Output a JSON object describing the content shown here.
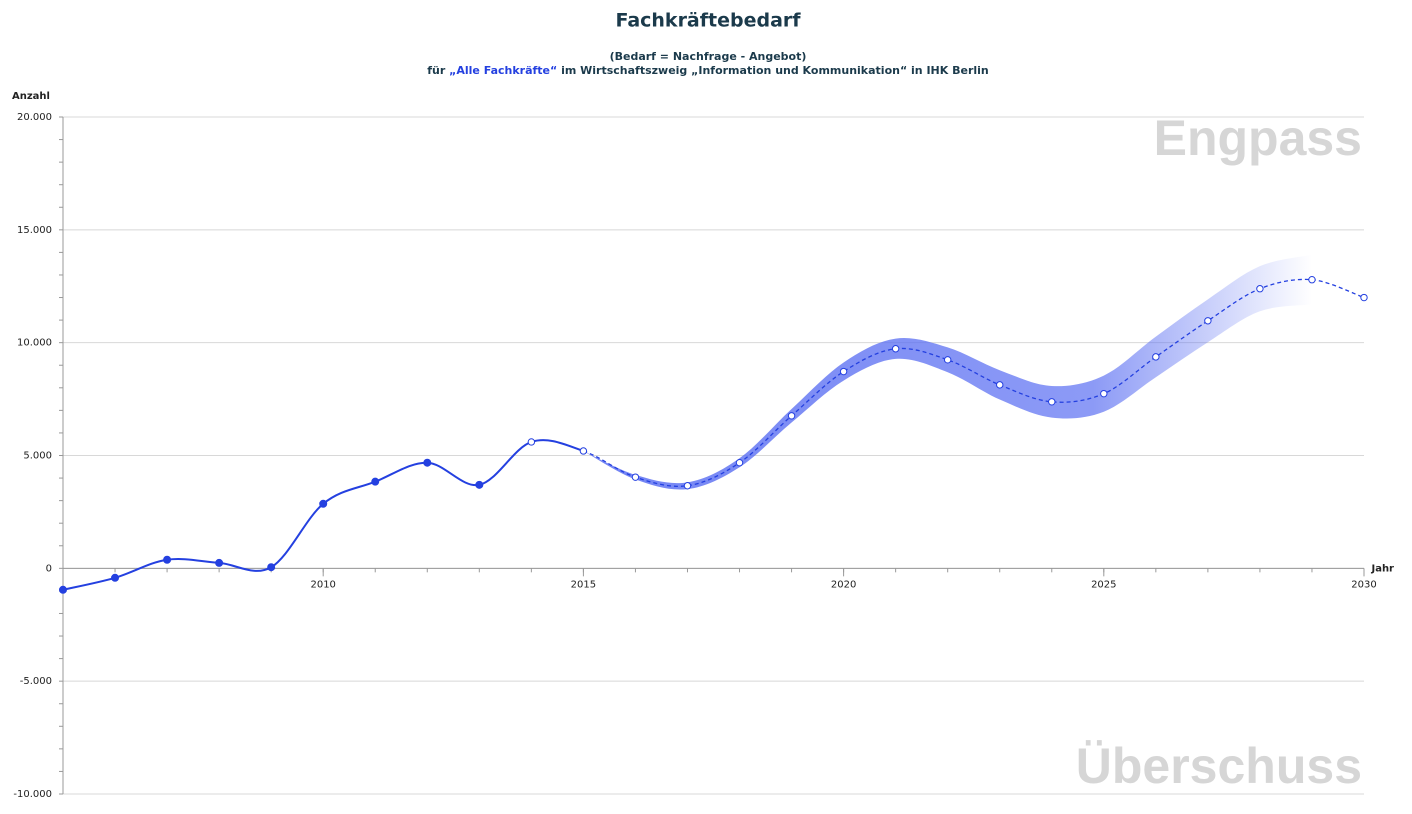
{
  "chart_data": {
    "type": "line",
    "title": "Fachkräftebedarf",
    "subtitle": "(Bedarf = Nachfrage - Angebot)",
    "subtitle2": [
      "für ",
      "„Alle Fachkräfte“",
      " im Wirtschaftszweig „Information und Kommunikation“ in IHK Berlin"
    ],
    "y_label": "Anzahl",
    "x_label": "Jahr",
    "annotations": [
      "Engpass",
      "Überschuss"
    ],
    "x": [
      2005,
      2006,
      2007,
      2008,
      2009,
      2010,
      2011,
      2012,
      2013,
      2014,
      2015,
      2016,
      2017,
      2018,
      2019,
      2020,
      2021,
      2022,
      2023,
      2024,
      2025,
      2026,
      2027,
      2028,
      2029,
      2030
    ],
    "series": [
      {
        "color": "#2440e0",
        "band_color": "#5b6ff2",
        "values": [
          -950,
          -420,
          380,
          240,
          50,
          2860,
          3840,
          4680,
          3700,
          5600,
          5200,
          4040,
          3660,
          4680,
          6760,
          8720,
          9730,
          9240,
          8130,
          7380,
          7740,
          9370,
          10970,
          12390,
          12790,
          12000
        ],
        "upper": [
          null,
          null,
          null,
          null,
          null,
          null,
          null,
          null,
          null,
          null,
          5200,
          4140,
          3810,
          4880,
          7060,
          9120,
          10180,
          9790,
          8780,
          8080,
          8540,
          10270,
          11920,
          13390,
          13890,
          null
        ],
        "lower": [
          null,
          null,
          null,
          null,
          null,
          null,
          null,
          null,
          null,
          null,
          5200,
          3940,
          3510,
          4480,
          6460,
          8320,
          9280,
          8690,
          7480,
          6680,
          6940,
          8470,
          10020,
          11390,
          11690,
          null
        ]
      }
    ],
    "observed_until": 2013,
    "dashed_from": 2015,
    "xlim": [
      2005,
      2030
    ],
    "xticks": [
      2010,
      2015,
      2020,
      2025,
      2030
    ],
    "ylim": [
      -10000,
      20000
    ],
    "yticks": [
      {
        "value": -10000,
        "label": "-10.000"
      },
      {
        "value": -5000,
        "label": "-5.000"
      },
      0,
      {
        "value": 5000,
        "label": "5.000"
      },
      {
        "value": 10000,
        "label": "10.000"
      },
      {
        "value": 15000,
        "label": "15.000"
      },
      {
        "value": 20000,
        "label": "20.000"
      }
    ],
    "grid": true
  }
}
